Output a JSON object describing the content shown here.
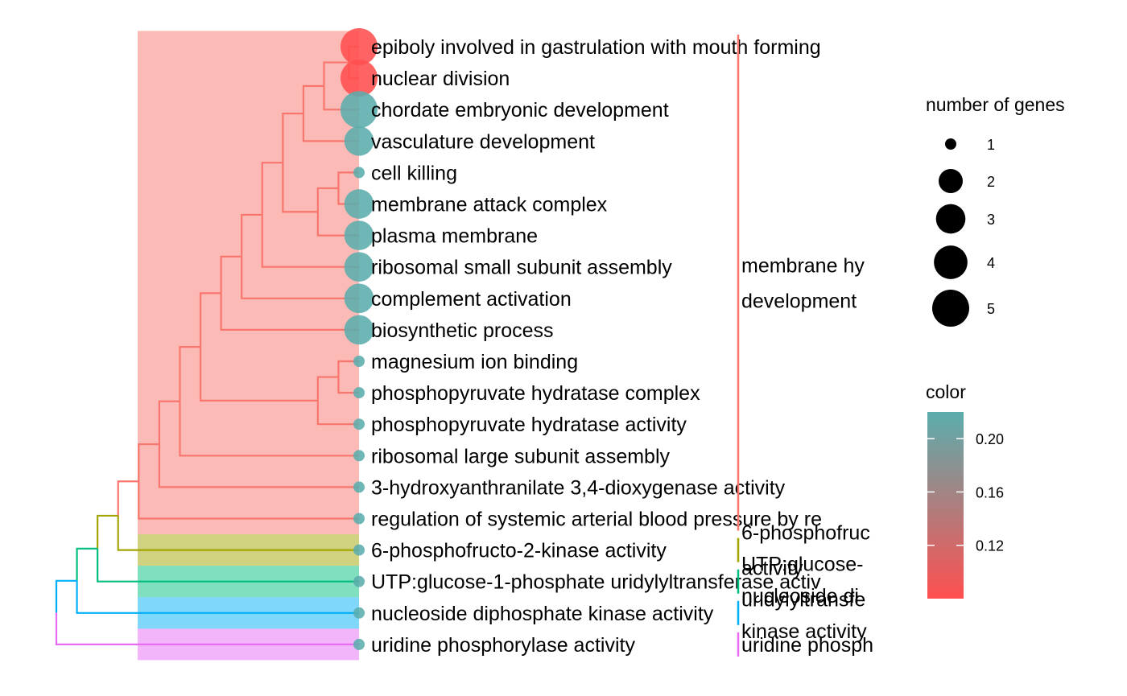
{
  "chart_data": {
    "type": "treeplot",
    "terms": [
      {
        "label": "epiboly involved in gastrulation with mouth forming",
        "count": 5,
        "color_value": 0.08,
        "cluster": 0
      },
      {
        "label": "nuclear division",
        "count": 5,
        "color_value": 0.08,
        "cluster": 0
      },
      {
        "label": "chordate embryonic development",
        "count": 5,
        "color_value": 0.22,
        "cluster": 0
      },
      {
        "label": "vasculature development",
        "count": 3,
        "color_value": 0.22,
        "cluster": 0
      },
      {
        "label": "cell killing",
        "count": 1,
        "color_value": 0.22,
        "cluster": 0
      },
      {
        "label": "membrane attack complex",
        "count": 3,
        "color_value": 0.22,
        "cluster": 0
      },
      {
        "label": "plasma membrane",
        "count": 3,
        "color_value": 0.22,
        "cluster": 0
      },
      {
        "label": "ribosomal small subunit assembly",
        "count": 3,
        "color_value": 0.22,
        "cluster": 0
      },
      {
        "label": "complement activation",
        "count": 3,
        "color_value": 0.22,
        "cluster": 0
      },
      {
        "label": "biosynthetic process",
        "count": 3,
        "color_value": 0.22,
        "cluster": 0
      },
      {
        "label": "magnesium ion binding",
        "count": 1,
        "color_value": 0.22,
        "cluster": 0
      },
      {
        "label": "phosphopyruvate hydratase complex",
        "count": 1,
        "color_value": 0.22,
        "cluster": 0
      },
      {
        "label": "phosphopyruvate hydratase activity",
        "count": 1,
        "color_value": 0.22,
        "cluster": 0
      },
      {
        "label": "ribosomal large subunit assembly",
        "count": 1,
        "color_value": 0.22,
        "cluster": 0
      },
      {
        "label": "3-hydroxyanthranilate 3,4-dioxygenase activity",
        "count": 1,
        "color_value": 0.22,
        "cluster": 0
      },
      {
        "label": "regulation of systemic arterial blood pressure by re",
        "count": 1,
        "color_value": 0.22,
        "cluster": 0
      },
      {
        "label": "6-phosphofructo-2-kinase activity",
        "count": 1,
        "color_value": 0.22,
        "cluster": 1
      },
      {
        "label": "UTP:glucose-1-phosphate uridylyltransferase activ",
        "count": 1,
        "color_value": 0.22,
        "cluster": 2
      },
      {
        "label": "nucleoside diphosphate kinase activity",
        "count": 1,
        "color_value": 0.22,
        "cluster": 3
      },
      {
        "label": "uridine phosphorylase activity",
        "count": 1,
        "color_value": 0.22,
        "cluster": 4
      }
    ],
    "clusters": [
      {
        "color": "#F8766D",
        "label_lines": [
          "membrane hy",
          "development"
        ]
      },
      {
        "color": "#A3A500",
        "label_lines": [
          "6-phosphofruc",
          "activity"
        ]
      },
      {
        "color": "#00BF7D",
        "label_lines": [
          "UTP:glucose-",
          "uridylyltransfe"
        ]
      },
      {
        "color": "#00B0F6",
        "label_lines": [
          "nucleoside di",
          "kinase activity"
        ]
      },
      {
        "color": "#E76BF3",
        "label_lines": [
          "uridine phosph"
        ]
      }
    ],
    "dendrogram": {
      "leaf_order": [
        0,
        1,
        2,
        3,
        4,
        5,
        6,
        7,
        8,
        9,
        10,
        11,
        12,
        13,
        14,
        15,
        16,
        17,
        18,
        19
      ],
      "merges": [
        {
          "children": [
            "L0",
            "L1"
          ],
          "height": 0.05
        },
        {
          "children": [
            "M0",
            "L2"
          ],
          "height": 0.17
        },
        {
          "children": [
            "M1",
            "L3"
          ],
          "height": 0.27
        },
        {
          "children": [
            "L4",
            "L5"
          ],
          "height": 0.1
        },
        {
          "children": [
            "M3",
            "L6"
          ],
          "height": 0.2
        },
        {
          "children": [
            "M2",
            "M4"
          ],
          "height": 0.37
        },
        {
          "children": [
            "M5",
            "L7"
          ],
          "height": 0.47
        },
        {
          "children": [
            "M6",
            "L8"
          ],
          "height": 0.57
        },
        {
          "children": [
            "M7",
            "L9"
          ],
          "height": 0.67
        },
        {
          "children": [
            "L10",
            "L11"
          ],
          "height": 0.1
        },
        {
          "children": [
            "M9",
            "L12"
          ],
          "height": 0.2
        },
        {
          "children": [
            "M8",
            "M10"
          ],
          "height": 0.77
        },
        {
          "children": [
            "M11",
            "L13"
          ],
          "height": 0.87
        },
        {
          "children": [
            "M12",
            "L14"
          ],
          "height": 0.97
        },
        {
          "children": [
            "M13",
            "L15"
          ],
          "height": 1.07
        },
        {
          "children": [
            "M14",
            "L16"
          ],
          "height": 1.17
        },
        {
          "children": [
            "M15",
            "L17"
          ],
          "height": 1.27
        },
        {
          "children": [
            "M16",
            "L18"
          ],
          "height": 1.37
        },
        {
          "children": [
            "M17",
            "L19"
          ],
          "height": 1.47
        }
      ]
    },
    "legend_size": {
      "title": "number of genes",
      "breaks": [
        {
          "label": "1",
          "value": 1
        },
        {
          "label": "2",
          "value": 2
        },
        {
          "label": "3",
          "value": 3
        },
        {
          "label": "4",
          "value": 4
        },
        {
          "label": "5",
          "value": 5
        }
      ]
    },
    "legend_color": {
      "title": "color",
      "range": [
        0.08,
        0.22
      ],
      "low_color": "#FF4F4F",
      "high_color": "#5BADAD",
      "ticks": [
        {
          "label": "0.20",
          "value": 0.2
        },
        {
          "label": "0.16",
          "value": 0.16
        },
        {
          "label": "0.12",
          "value": 0.12
        }
      ]
    }
  }
}
